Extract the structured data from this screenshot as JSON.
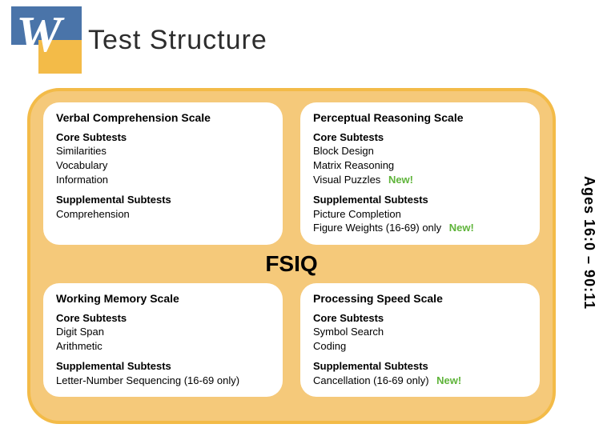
{
  "colors": {
    "frame_border": "#f3bb48",
    "frame_fill": "#f5c97a",
    "panel_bg": "#ffffff",
    "logo_blue": "#4a74a9",
    "logo_gold": "#f3bb48",
    "new_badge": "#5fb43a",
    "text": "#000000"
  },
  "header": {
    "title": "Test Structure"
  },
  "fsiq_label": "FSIQ",
  "age_label": "Ages 16:0 – 90:11",
  "new_label": "New!",
  "panels": {
    "vc": {
      "title": "Verbal Comprehension Scale",
      "core_head": "Core Subtests",
      "core": [
        "Similarities",
        "Vocabulary",
        "Information"
      ],
      "supp_head": "Supplemental Subtests",
      "supp": [
        {
          "label": "Comprehension",
          "new": false
        }
      ]
    },
    "pr": {
      "title": "Perceptual Reasoning Scale",
      "core_head": "Core Subtests",
      "core_items": [
        {
          "label": "Block Design",
          "new": false
        },
        {
          "label": "Matrix Reasoning",
          "new": false
        },
        {
          "label": "Visual Puzzles",
          "new": true
        }
      ],
      "supp_head": "Supplemental Subtests",
      "supp": [
        {
          "label": "Picture Completion",
          "new": false
        },
        {
          "label": "Figure Weights  (16-69) only",
          "new": true
        }
      ]
    },
    "wm": {
      "title": "Working Memory Scale",
      "core_head": "Core Subtests",
      "core": [
        "Digit Span",
        "Arithmetic"
      ],
      "supp_head": "Supplemental Subtests",
      "supp": [
        {
          "label": "Letter-Number Sequencing (16-69 only)",
          "new": false
        }
      ]
    },
    "ps": {
      "title": "Processing Speed Scale",
      "core_head": "Core Subtests",
      "core": [
        "Symbol Search",
        "Coding"
      ],
      "supp_head": "Supplemental Subtests",
      "supp": [
        {
          "label": "Cancellation  (16-69 only)",
          "new": true
        }
      ]
    }
  }
}
